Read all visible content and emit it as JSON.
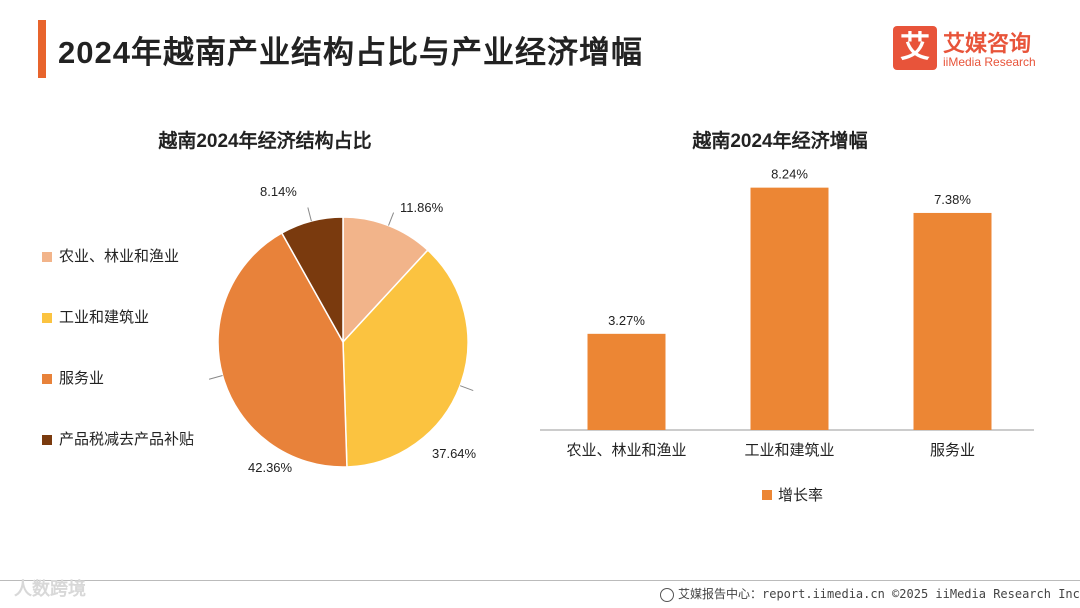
{
  "header": {
    "title": "2024年越南产业结构占比与产业经济增幅",
    "logo_mark": "艾",
    "logo_cn": "艾媒咨询",
    "logo_en": "iiMedia Research"
  },
  "colors": {
    "accent": "#e8642c",
    "agriculture": "#f2b48a",
    "industry": "#fbc340",
    "services": "#e8823a",
    "taxes": "#7a3a0e",
    "bar": "#ec8634"
  },
  "chart_data": [
    {
      "type": "pie",
      "title": "越南2024年经济结构占比",
      "categories": [
        "农业、林业和渔业",
        "工业和建筑业",
        "服务业",
        "产品税减去产品补贴"
      ],
      "values": [
        11.86,
        37.64,
        42.36,
        8.14
      ],
      "labels": [
        "11.86%",
        "37.64%",
        "42.36%",
        "8.14%"
      ],
      "legend_position": "left"
    },
    {
      "type": "bar",
      "title": "越南2024年经济增幅",
      "categories": [
        "农业、林业和渔业",
        "工业和建筑业",
        "服务业"
      ],
      "series": [
        {
          "name": "增长率",
          "values": [
            3.27,
            8.24,
            7.38
          ]
        }
      ],
      "labels": [
        "3.27%",
        "8.24%",
        "7.38%"
      ],
      "ylim": [
        0,
        8.5
      ],
      "legend_position": "bottom"
    }
  ],
  "footer": {
    "source": "艾媒报告中心：report.iimedia.cn  ©2025  iiMedia Research Inc"
  },
  "watermark": "人数跨境"
}
